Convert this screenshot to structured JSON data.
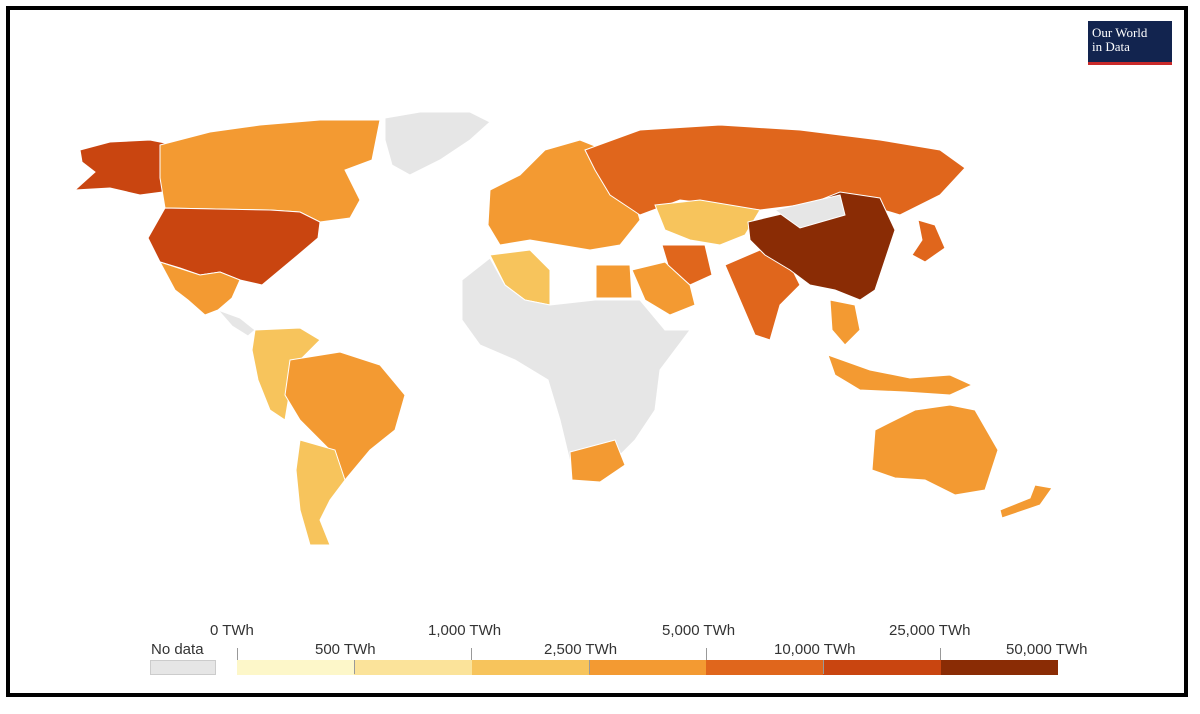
{
  "logo": {
    "line1": "Our World",
    "line2": "in Data"
  },
  "colors": {
    "no_data": "#e6e6e6",
    "bins": [
      "#fdf7c9",
      "#fbe39a",
      "#f7c45c",
      "#f39a32",
      "#e0661c",
      "#c94510",
      "#8a2c05"
    ],
    "border": "#ffffff"
  },
  "legend": {
    "no_data_label": "No data",
    "tick_labels": [
      "0 TWh",
      "500 TWh",
      "1,000 TWh",
      "2,500 TWh",
      "5,000 TWh",
      "10,000 TWh",
      "25,000 TWh",
      "50,000 TWh"
    ]
  },
  "regions": [
    {
      "name": "Alaska / USA",
      "bin": 5
    },
    {
      "name": "Canada",
      "bin": 3
    },
    {
      "name": "USA",
      "bin": 5
    },
    {
      "name": "Mexico",
      "bin": 3
    },
    {
      "name": "Greenland",
      "bin": -1
    },
    {
      "name": "Brazil",
      "bin": 3
    },
    {
      "name": "Argentina",
      "bin": 2
    },
    {
      "name": "Russia",
      "bin": 4
    },
    {
      "name": "China",
      "bin": 6
    },
    {
      "name": "India",
      "bin": 4
    },
    {
      "name": "Australia",
      "bin": 3
    },
    {
      "name": "South Africa",
      "bin": 3
    },
    {
      "name": "Africa (most)",
      "bin": -1
    },
    {
      "name": "Saudi Arabia",
      "bin": 3
    },
    {
      "name": "Iran",
      "bin": 4
    },
    {
      "name": "Japan",
      "bin": 4
    },
    {
      "name": "Indonesia",
      "bin": 3
    },
    {
      "name": "Kazakhstan",
      "bin": 2
    },
    {
      "name": "Europe",
      "bin": 3
    },
    {
      "name": "Algeria",
      "bin": 2
    },
    {
      "name": "Egypt",
      "bin": 3
    }
  ]
}
